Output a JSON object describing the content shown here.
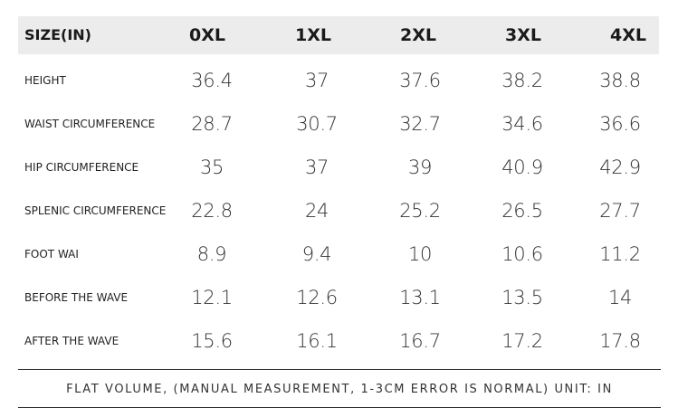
{
  "table": {
    "header_label": "SIZE(IN)",
    "columns": [
      "0XL",
      "1XL",
      "2XL",
      "3XL",
      "4XL"
    ],
    "rows": [
      {
        "label": "HEIGHT",
        "values": [
          "36.4",
          "37",
          "37.6",
          "38.2",
          "38.8"
        ]
      },
      {
        "label": "WAIST CIRCUMFERENCE",
        "values": [
          "28.7",
          "30.7",
          "32.7",
          "34.6",
          "36.6"
        ]
      },
      {
        "label": "HIP CIRCUMFERENCE",
        "values": [
          "35",
          "37",
          "39",
          "40.9",
          "42.9"
        ]
      },
      {
        "label": "SPLENIC CIRCUMFERENCE",
        "values": [
          "22.8",
          "24",
          "25.2",
          "26.5",
          "27.7"
        ]
      },
      {
        "label": "FOOT WAI",
        "values": [
          "8.9",
          "9.4",
          "10",
          "10.6",
          "11.2"
        ]
      },
      {
        "label": "BEFORE THE WAVE",
        "values": [
          "12.1",
          "12.6",
          "13.1",
          "13.5",
          "14"
        ]
      },
      {
        "label": "AFTER THE WAVE",
        "values": [
          "15.6",
          "16.1",
          "16.7",
          "17.2",
          "17.8"
        ]
      }
    ]
  },
  "footnote": "FLAT VOLUME, (MANUAL MEASUREMENT, 1-3CM ERROR IS NORMAL) UNIT: IN",
  "colors": {
    "header_band": "#ececec",
    "text": "#222222",
    "rule": "#333333"
  }
}
